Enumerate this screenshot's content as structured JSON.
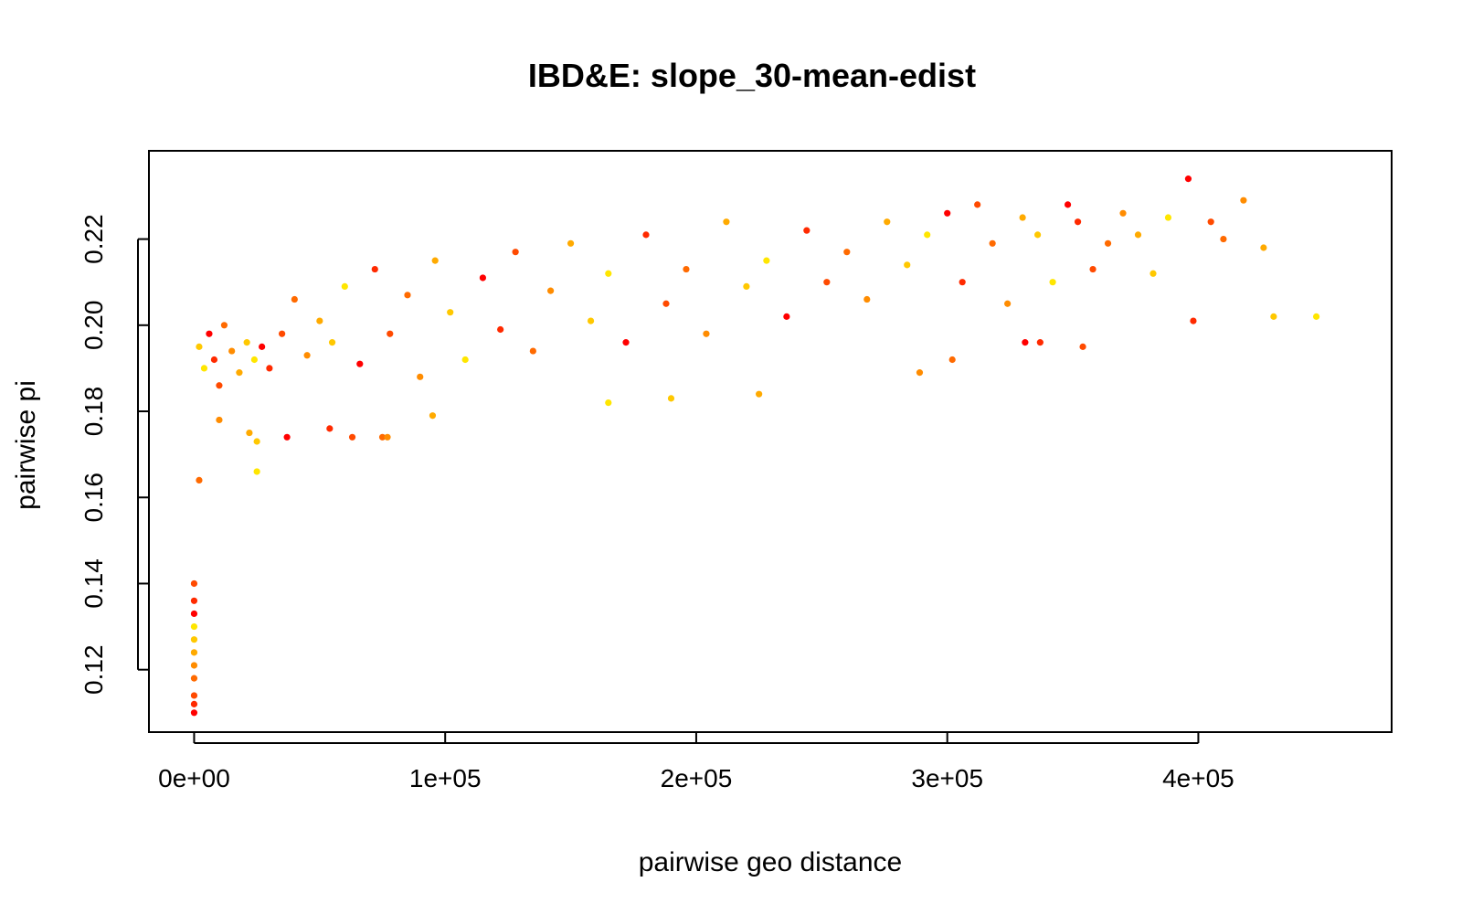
{
  "chart_data": {
    "type": "scatter",
    "title": "IBD&E: slope_30-mean-edist",
    "xlabel": "pairwise geo distance",
    "ylabel": "pairwise pi",
    "xlim": [
      -18000,
      477000
    ],
    "ylim": [
      0.1055,
      0.2405
    ],
    "x_ticks": [
      {
        "value": 0,
        "label": "0e+00"
      },
      {
        "value": 100000,
        "label": "1e+05"
      },
      {
        "value": 200000,
        "label": "2e+05"
      },
      {
        "value": 300000,
        "label": "3e+05"
      },
      {
        "value": 400000,
        "label": "4e+05"
      }
    ],
    "y_ticks": [
      {
        "value": 0.12,
        "label": "0.12"
      },
      {
        "value": 0.14,
        "label": "0.14"
      },
      {
        "value": 0.16,
        "label": "0.16"
      },
      {
        "value": 0.18,
        "label": "0.18"
      },
      {
        "value": 0.2,
        "label": "0.20"
      },
      {
        "value": 0.22,
        "label": "0.22"
      }
    ],
    "grid": false,
    "legend": "none",
    "point_colors": [
      "#ff0000",
      "#ff2a00",
      "#ff4a00",
      "#ff6a00",
      "#ff8c00",
      "#ffaa00",
      "#ffc800",
      "#ffe600"
    ],
    "points": [
      [
        0,
        0.11
      ],
      [
        0,
        0.112
      ],
      [
        0,
        0.114
      ],
      [
        0,
        0.118
      ],
      [
        0,
        0.121
      ],
      [
        0,
        0.124
      ],
      [
        0,
        0.127
      ],
      [
        0,
        0.13
      ],
      [
        0,
        0.133
      ],
      [
        0,
        0.136
      ],
      [
        0,
        0.14
      ],
      [
        2000,
        0.164
      ],
      [
        10000,
        0.178
      ],
      [
        22000,
        0.175
      ],
      [
        25000,
        0.173
      ],
      [
        25000,
        0.166
      ],
      [
        37000,
        0.174
      ],
      [
        54000,
        0.176
      ],
      [
        63000,
        0.174
      ],
      [
        75000,
        0.174
      ],
      [
        77000,
        0.174
      ],
      [
        95000,
        0.179
      ],
      [
        2000,
        0.195
      ],
      [
        4000,
        0.19
      ],
      [
        6000,
        0.198
      ],
      [
        8000,
        0.192
      ],
      [
        10000,
        0.186
      ],
      [
        12000,
        0.2
      ],
      [
        15000,
        0.194
      ],
      [
        18000,
        0.189
      ],
      [
        21000,
        0.196
      ],
      [
        24000,
        0.192
      ],
      [
        27000,
        0.195
      ],
      [
        30000,
        0.19
      ],
      [
        35000,
        0.198
      ],
      [
        40000,
        0.206
      ],
      [
        45000,
        0.193
      ],
      [
        50000,
        0.201
      ],
      [
        55000,
        0.196
      ],
      [
        60000,
        0.209
      ],
      [
        66000,
        0.191
      ],
      [
        72000,
        0.213
      ],
      [
        78000,
        0.198
      ],
      [
        85000,
        0.207
      ],
      [
        90000,
        0.188
      ],
      [
        96000,
        0.215
      ],
      [
        102000,
        0.203
      ],
      [
        108000,
        0.192
      ],
      [
        115000,
        0.211
      ],
      [
        122000,
        0.199
      ],
      [
        128000,
        0.217
      ],
      [
        135000,
        0.194
      ],
      [
        142000,
        0.208
      ],
      [
        150000,
        0.219
      ],
      [
        158000,
        0.201
      ],
      [
        165000,
        0.212
      ],
      [
        172000,
        0.196
      ],
      [
        180000,
        0.221
      ],
      [
        188000,
        0.205
      ],
      [
        196000,
        0.213
      ],
      [
        204000,
        0.198
      ],
      [
        212000,
        0.224
      ],
      [
        220000,
        0.209
      ],
      [
        228000,
        0.215
      ],
      [
        236000,
        0.202
      ],
      [
        244000,
        0.222
      ],
      [
        252000,
        0.21
      ],
      [
        260000,
        0.217
      ],
      [
        268000,
        0.206
      ],
      [
        276000,
        0.224
      ],
      [
        284000,
        0.214
      ],
      [
        292000,
        0.221
      ],
      [
        300000,
        0.226
      ],
      [
        306000,
        0.21
      ],
      [
        312000,
        0.228
      ],
      [
        318000,
        0.219
      ],
      [
        324000,
        0.205
      ],
      [
        330000,
        0.225
      ],
      [
        336000,
        0.221
      ],
      [
        342000,
        0.21
      ],
      [
        348000,
        0.228
      ],
      [
        352000,
        0.224
      ],
      [
        358000,
        0.213
      ],
      [
        364000,
        0.219
      ],
      [
        370000,
        0.226
      ],
      [
        376000,
        0.221
      ],
      [
        382000,
        0.212
      ],
      [
        388000,
        0.225
      ],
      [
        396000,
        0.234
      ],
      [
        398000,
        0.201
      ],
      [
        405000,
        0.224
      ],
      [
        410000,
        0.22
      ],
      [
        418000,
        0.229
      ],
      [
        426000,
        0.218
      ],
      [
        430000,
        0.202
      ],
      [
        447000,
        0.202
      ],
      [
        331000,
        0.196
      ],
      [
        337000,
        0.196
      ],
      [
        354000,
        0.195
      ],
      [
        302000,
        0.192
      ],
      [
        289000,
        0.189
      ],
      [
        225000,
        0.184
      ],
      [
        190000,
        0.183
      ],
      [
        165000,
        0.182
      ]
    ]
  }
}
